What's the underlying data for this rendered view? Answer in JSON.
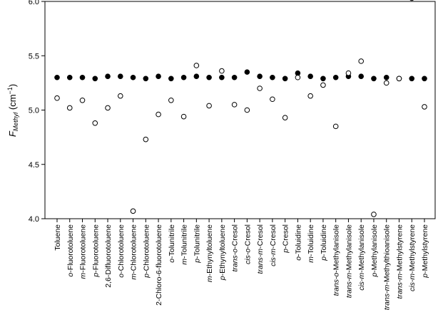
{
  "chart_data": {
    "type": "scatter",
    "title": "",
    "xlabel": "",
    "ylabel": {
      "main": "F",
      "subscript": "Methyl",
      "unit_prefix": " (cm",
      "unit_sup": "−1",
      "unit_suffix": ")"
    },
    "ylim": [
      4.0,
      6.0
    ],
    "yticks": [
      "4.0",
      "4.5",
      "5.0",
      "5.5",
      "6.0"
    ],
    "grid": false,
    "legend": "none",
    "categories": [
      {
        "prefix": "",
        "base": "Toluene"
      },
      {
        "prefix": "o",
        "base": "-Fluorotoluene"
      },
      {
        "prefix": "m",
        "base": "-Fluorotoluene"
      },
      {
        "prefix": "p",
        "base": "-Fluorotoluene"
      },
      {
        "prefix": "",
        "base": "2,6-Difluorotoluene"
      },
      {
        "prefix": "o",
        "base": "-Chlorotoluene"
      },
      {
        "prefix": "m",
        "base": "-Chlorotoluene"
      },
      {
        "prefix": "p",
        "base": "-Chlorotoluene"
      },
      {
        "prefix": "",
        "base": "2-Chloro-6-fluorotoluene"
      },
      {
        "prefix": "o",
        "base": "-Tolunitrile"
      },
      {
        "prefix": "m",
        "base": "-Tolunitrile"
      },
      {
        "prefix": "p",
        "base": "-Tolunitrile"
      },
      {
        "prefix": "m",
        "base": "-Ethynyltoluene"
      },
      {
        "prefix": "p",
        "base": "-Ethynyltoluene"
      },
      {
        "prefix": "trans-o",
        "base": "-Cresol"
      },
      {
        "prefix": "cis-o",
        "base": "-Cresol"
      },
      {
        "prefix": "trans-m",
        "base": "-Cresol"
      },
      {
        "prefix": "cis-m",
        "base": "-Cresol"
      },
      {
        "prefix": "p",
        "base": "-Cresol"
      },
      {
        "prefix": "o",
        "base": "-Toluidine"
      },
      {
        "prefix": "m",
        "base": "-Toluidine"
      },
      {
        "prefix": "p",
        "base": "-Toluidine"
      },
      {
        "prefix": "trans-o",
        "base": "-Methylanisole"
      },
      {
        "prefix": "trans-m",
        "base": "-Methylanisole"
      },
      {
        "prefix": "cis-m",
        "base": "-Methylanisole"
      },
      {
        "prefix": "p",
        "base": "-Methylanisole"
      },
      {
        "prefix": "trans-m",
        "base": "-Methylthioanisole"
      },
      {
        "prefix": "trans-m",
        "base": "-Methylstyrene"
      },
      {
        "prefix": "cis-m",
        "base": "-Methylstyrene"
      },
      {
        "prefix": "p",
        "base": "-Methylstyrene"
      }
    ],
    "series": [
      {
        "name": "filled",
        "marker": "filled-circle",
        "values": [
          5.3,
          5.3,
          5.3,
          5.29,
          5.31,
          5.31,
          5.3,
          5.29,
          5.31,
          5.29,
          5.3,
          5.31,
          5.3,
          5.3,
          5.3,
          5.35,
          5.31,
          5.3,
          5.29,
          5.34,
          5.31,
          5.29,
          5.3,
          5.31,
          5.31,
          5.29,
          5.3,
          5.29,
          5.29,
          5.29
        ]
      },
      {
        "name": "open",
        "marker": "open-circle",
        "values": [
          5.11,
          5.02,
          5.09,
          4.88,
          5.02,
          5.13,
          4.07,
          4.73,
          4.96,
          5.09,
          4.94,
          5.41,
          5.04,
          5.36,
          5.05,
          5.0,
          5.2,
          5.1,
          4.93,
          5.3,
          5.13,
          5.23,
          4.85,
          5.34,
          5.45,
          4.04,
          5.25,
          5.29,
          6.03,
          5.03
        ]
      }
    ]
  }
}
